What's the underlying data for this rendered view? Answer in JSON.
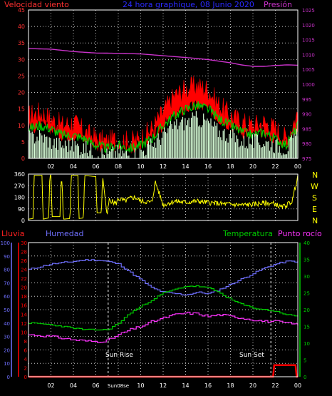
{
  "header": {
    "wind_speed_label": "Velocidad viento",
    "title": "24 hora graphique, 08 Junio 2020",
    "pressure_label": "Presión"
  },
  "compass": [
    "N",
    "W",
    "S",
    "E",
    "N"
  ],
  "lower_labels": {
    "rain": "Lluvia",
    "humidity": "Humedad",
    "temperature": "Temperatura",
    "dew_point": "Punto rocío",
    "sunrise": "Sun Rise",
    "sunset": "Sun Set",
    "sunrise_tick": "Sun08se"
  },
  "colors": {
    "background": "#000000",
    "plot_border": "#ffffff",
    "grid": "#c8c8c8",
    "wind_gust": "#ff0000",
    "wind_avg": "#00cc00",
    "wind_min": "#d8ffd8",
    "pressure": "#cc33cc",
    "direction": "#ffff00",
    "rain": "#ff0000",
    "humidity": "#7070ff",
    "temperature": "#00cc00",
    "dew_point": "#ff33ff",
    "title": "#2a2aff",
    "axis_left_top": "#ff3030",
    "axis_right_top": "#cc33cc"
  },
  "chart_data": [
    {
      "type": "area",
      "name": "wind-and-pressure",
      "x_ticks": [
        "02",
        "04",
        "06",
        "08",
        "10",
        "12",
        "14",
        "16",
        "18",
        "20",
        "22",
        "00"
      ],
      "y_left_ticks": [
        "0",
        "5",
        "10",
        "15",
        "20",
        "25",
        "30",
        "35",
        "40",
        "45"
      ],
      "y_left_range": [
        0,
        45
      ],
      "y_right_ticks": [
        "975",
        "980",
        "985",
        "990",
        "995",
        "1000",
        "1005",
        "1010",
        "1015",
        "1020",
        "1025"
      ],
      "y_right_range": [
        975,
        1025
      ],
      "grid": true,
      "series": [
        {
          "name": "Velocidad viento",
          "role": "gust",
          "x": [
            0,
            1,
            2,
            3,
            4,
            5,
            6,
            7,
            8,
            9,
            10,
            11,
            12,
            13,
            14,
            15,
            16,
            17,
            18,
            19,
            20,
            21,
            22,
            23,
            24
          ],
          "y": [
            13,
            14,
            12,
            10,
            11,
            8,
            6,
            5,
            6,
            5,
            6,
            9,
            14,
            19,
            21,
            22,
            21,
            16,
            13,
            11,
            10,
            11,
            9,
            6,
            14
          ]
        },
        {
          "name": "",
          "role": "average",
          "x": [
            0,
            1,
            2,
            3,
            4,
            5,
            6,
            7,
            8,
            9,
            10,
            11,
            12,
            13,
            14,
            15,
            16,
            17,
            18,
            19,
            20,
            21,
            22,
            23,
            24
          ],
          "y": [
            9,
            10,
            9,
            7,
            7,
            6,
            4,
            3,
            4,
            3,
            4,
            6,
            10,
            13,
            15,
            16,
            15,
            12,
            10,
            8,
            7,
            8,
            6,
            4,
            10
          ]
        },
        {
          "name": "",
          "role": "minimum",
          "x": [
            0,
            1,
            2,
            3,
            4,
            5,
            6,
            7,
            8,
            9,
            10,
            11,
            12,
            13,
            14,
            15,
            16,
            17,
            18,
            19,
            20,
            21,
            22,
            23,
            24
          ],
          "y": [
            6,
            7,
            5,
            4,
            4,
            3,
            2,
            1,
            2,
            1,
            2,
            4,
            7,
            10,
            11,
            12,
            11,
            8,
            7,
            5,
            5,
            5,
            4,
            3,
            7
          ]
        },
        {
          "name": "Presión",
          "axis": "right",
          "x": [
            0,
            2,
            4,
            6,
            8,
            10,
            12,
            14,
            16,
            18,
            19,
            20,
            21,
            22,
            23,
            24
          ],
          "y": [
            1012,
            1011.8,
            1011,
            1010.5,
            1010.4,
            1010.2,
            1009.6,
            1009,
            1008.3,
            1007.2,
            1006.5,
            1006,
            1006,
            1006.3,
            1006.5,
            1006.4
          ]
        }
      ]
    },
    {
      "type": "line",
      "name": "wind-direction",
      "x_ticks": [
        "02",
        "04",
        "06",
        "08",
        "10",
        "12",
        "14",
        "16",
        "18",
        "20",
        "22",
        "00"
      ],
      "y_ticks": [
        "0",
        "90",
        "180",
        "270",
        "360"
      ],
      "y_range": [
        0,
        360
      ],
      "grid": true,
      "series": [
        {
          "name": "",
          "x": [
            0,
            0.4,
            0.5,
            1.2,
            1.3,
            1.8,
            1.9,
            2.0,
            2.1,
            2.8,
            2.9,
            3.0,
            3.1,
            3.7,
            3.8,
            4.4,
            4.5,
            4.9,
            5.0,
            6.0,
            6.1,
            6.5,
            6.6,
            7.0,
            7.2,
            7.8,
            8.0,
            8.6,
            9.0,
            9.5,
            10,
            11,
            11.3,
            12,
            13,
            14,
            15,
            16,
            17,
            18,
            19,
            20,
            21,
            22,
            22.5,
            23,
            23.5,
            24
          ],
          "y": [
            10,
            15,
            350,
            350,
            10,
            20,
            350,
            350,
            30,
            30,
            300,
            300,
            10,
            15,
            350,
            350,
            15,
            20,
            350,
            340,
            60,
            60,
            350,
            40,
            160,
            130,
            170,
            150,
            170,
            180,
            150,
            140,
            300,
            120,
            150,
            140,
            150,
            140,
            130,
            125,
            120,
            125,
            135,
            130,
            100,
            120,
            150,
            350
          ]
        }
      ]
    },
    {
      "type": "line",
      "name": "rain-humidity-temperature-dewpoint",
      "x_ticks": [
        "02",
        "04",
        "06",
        "Sun08se",
        "10",
        "12",
        "14",
        "16",
        "18",
        "20",
        "22",
        "00"
      ],
      "y_humidity_ticks": [
        "0",
        "10",
        "20",
        "30",
        "40",
        "50",
        "60",
        "70",
        "80",
        "90",
        "100"
      ],
      "y_humidity_range": [
        0,
        100
      ],
      "y_rain_ticks": [
        "0",
        "2",
        "4",
        "6",
        "8",
        "10",
        "12",
        "14",
        "16",
        "18",
        "20",
        "22",
        "24",
        "26",
        "28",
        "30"
      ],
      "y_rain_range": [
        0,
        30
      ],
      "y_right_ticks": [
        "0",
        "5",
        "10",
        "15",
        "20",
        "25",
        "30",
        "35",
        "40"
      ],
      "y_right_range": [
        0,
        40
      ],
      "grid": true,
      "sunrise_hour": 7.1,
      "sunset_hour": 21.6,
      "series": [
        {
          "name": "Lluvia",
          "axis": "rain",
          "x": [
            0,
            21.8,
            21.9,
            23.8,
            23.9,
            24
          ],
          "y": [
            0,
            0,
            2.6,
            2.6,
            0,
            0
          ]
        },
        {
          "name": "Humedad",
          "axis": "humidity",
          "x": [
            0,
            1,
            2,
            3,
            4,
            5,
            6,
            7,
            8,
            9,
            10,
            11,
            12,
            13,
            14,
            15,
            16,
            17,
            18,
            19,
            20,
            21,
            22,
            23,
            24
          ],
          "y": [
            80,
            82,
            84,
            85,
            86,
            87,
            87,
            86,
            84,
            78,
            72,
            66,
            63,
            62,
            61,
            63,
            62,
            65,
            69,
            73,
            77,
            81,
            84,
            86,
            86
          ]
        },
        {
          "name": "Temperatura",
          "axis": "right",
          "x": [
            0,
            1,
            2,
            3,
            4,
            5,
            6,
            7,
            8,
            9,
            10,
            11,
            12,
            13,
            14,
            15,
            16,
            17,
            18,
            19,
            20,
            21,
            22,
            23,
            24
          ],
          "y": [
            16,
            15.8,
            15.5,
            15,
            14.5,
            14,
            14,
            14,
            16,
            19,
            21,
            23,
            25,
            26,
            27,
            27,
            26.5,
            25,
            23,
            21.5,
            20.5,
            20,
            19.5,
            18.5,
            18
          ]
        },
        {
          "name": "Punto rocío",
          "axis": "right",
          "x": [
            0,
            1,
            2,
            3,
            4,
            5,
            6,
            7,
            8,
            9,
            10,
            11,
            12,
            13,
            14,
            15,
            16,
            17,
            18,
            19,
            20,
            21,
            22,
            23,
            24
          ],
          "y": [
            12.5,
            12.3,
            12,
            11.5,
            11,
            10.7,
            10.5,
            10.8,
            12.5,
            14,
            15,
            16.5,
            17.5,
            18.5,
            19,
            18.8,
            18,
            18.5,
            18,
            17.5,
            17,
            16.5,
            16.5,
            16,
            15.5
          ]
        }
      ]
    }
  ]
}
